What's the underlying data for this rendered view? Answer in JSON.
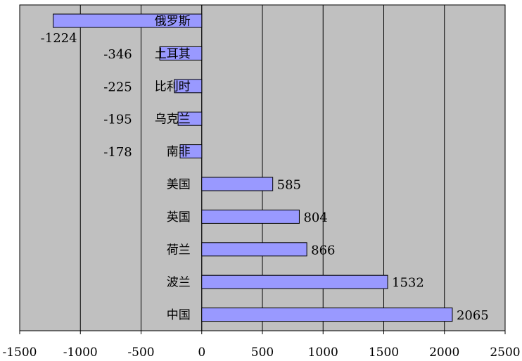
{
  "chart_data": {
    "type": "bar",
    "orientation": "horizontal",
    "categories": [
      "俄罗斯",
      "土耳其",
      "比利时",
      "乌克兰",
      "南非",
      "美国",
      "英国",
      "荷兰",
      "波兰",
      "中国"
    ],
    "values": [
      -1224,
      -346,
      -225,
      -195,
      -178,
      585,
      804,
      866,
      1532,
      2065
    ],
    "data_labels": [
      "-1224",
      "-346",
      "-225",
      "-195",
      "-178",
      "585",
      "804",
      "866",
      "1532",
      "2065"
    ],
    "xlim": [
      -1500,
      2500
    ],
    "xticks": [
      -1500,
      -1000,
      -500,
      0,
      500,
      1000,
      1500,
      2000,
      2500
    ],
    "xtick_labels": [
      "-1500",
      "-1000",
      "-500",
      "0",
      "500",
      "1000",
      "1500",
      "2000",
      "2500"
    ],
    "grid": "vertical",
    "legend": "none",
    "title": "",
    "xlabel": "",
    "ylabel": "",
    "colors": {
      "bar_fill": "#9999ff",
      "bar_stroke": "#000000",
      "plot_background": "#c0c0c0",
      "gridline": "#000000"
    }
  }
}
